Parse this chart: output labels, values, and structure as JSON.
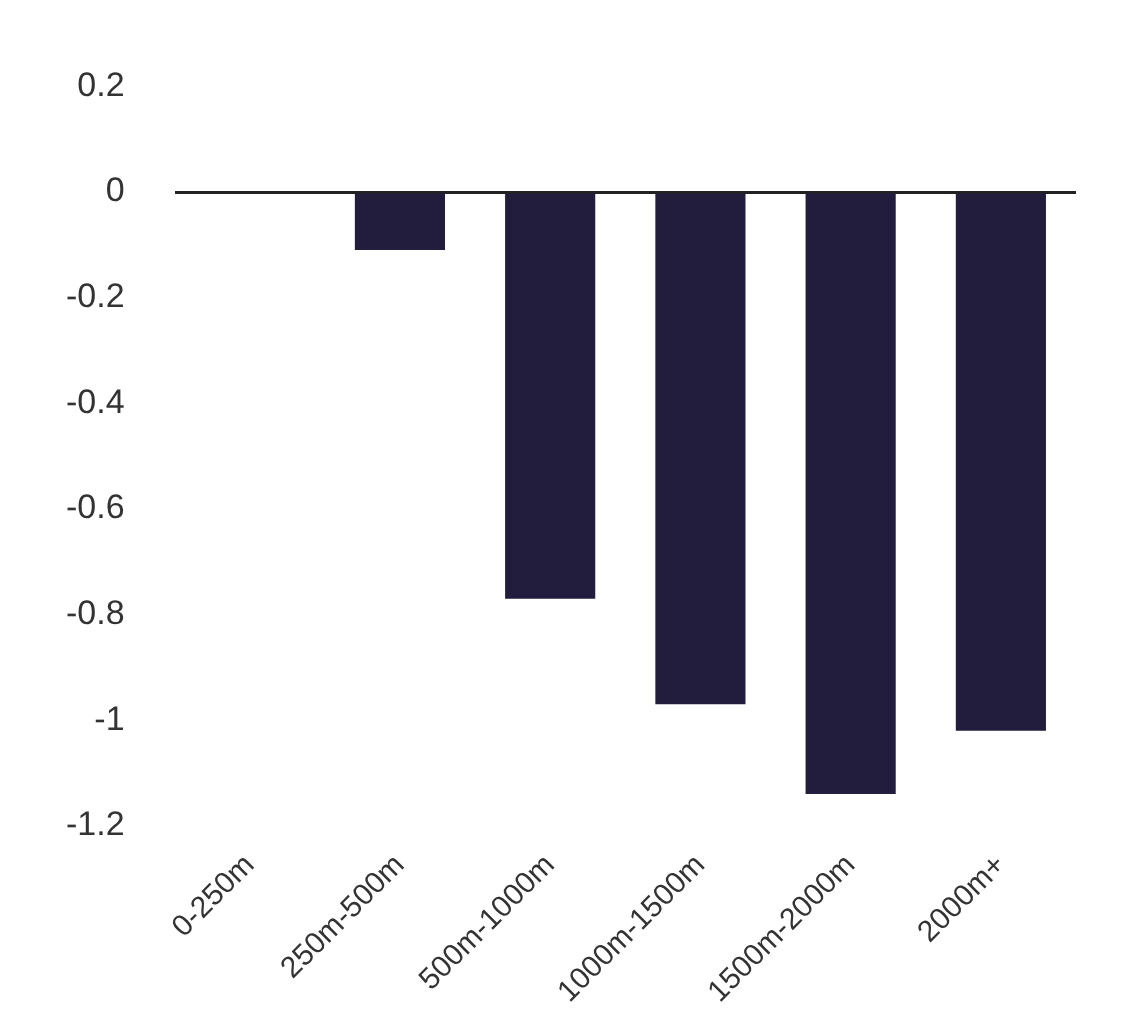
{
  "chart_data": {
    "type": "bar",
    "categories": [
      "0-250m",
      "250m-500m",
      "500m-1000m",
      "1000m-1500m",
      "1500m-2000m",
      "2000m+"
    ],
    "values": [
      0,
      -0.11,
      -0.77,
      -0.97,
      -1.14,
      -1.02
    ],
    "color": "#221d3d",
    "ylim": [
      -1.2,
      0.2
    ],
    "yticks": [
      0.2,
      0,
      -0.2,
      -0.4,
      -0.6,
      -0.8,
      -1,
      -1.2
    ]
  }
}
